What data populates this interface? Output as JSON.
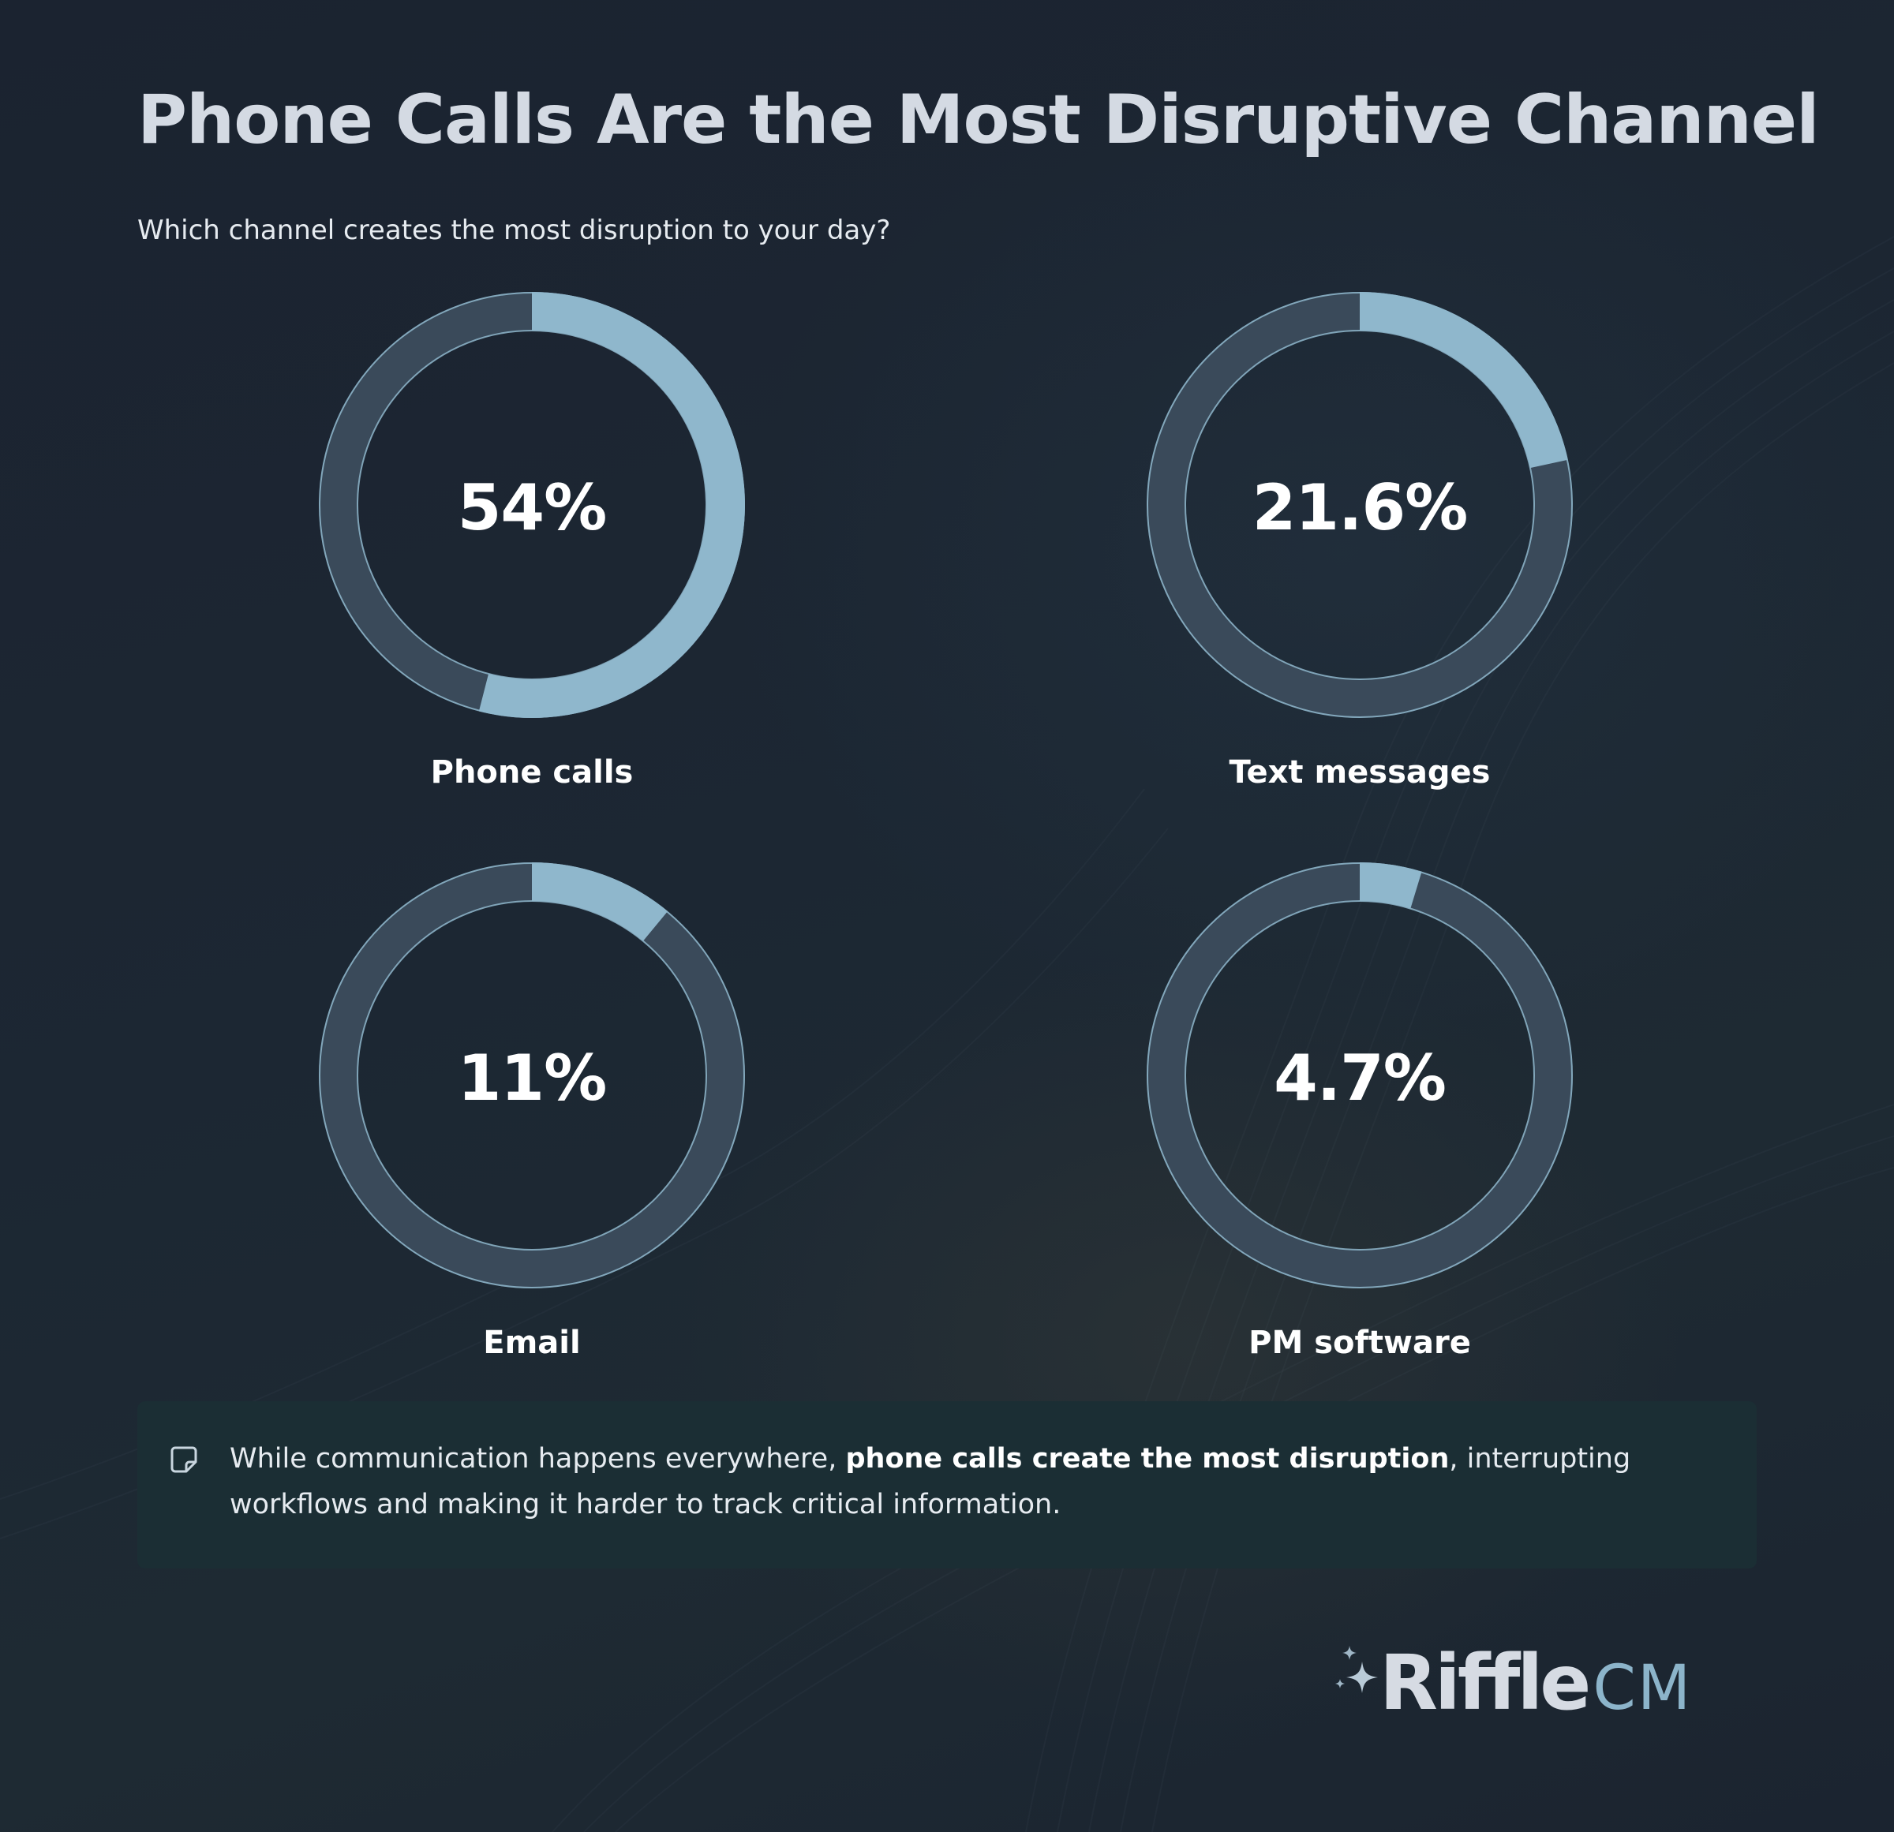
{
  "title": "Phone Calls Are the Most Disruptive Channel",
  "subtitle": "Which channel creates the most disruption to your day?",
  "chart_data": {
    "type": "donut",
    "question": "Which channel creates the most disruption to your day?",
    "series": [
      {
        "name": "Phone calls",
        "value": 54,
        "label": "54%"
      },
      {
        "name": "Text messages",
        "value": 21.6,
        "label": "21.6%"
      },
      {
        "name": "Email",
        "value": 11,
        "label": "11%"
      },
      {
        "name": "PM software",
        "value": 4.7,
        "label": "4.7%"
      }
    ],
    "max": 100
  },
  "callout": {
    "icon": "note-icon",
    "text_before": "While communication happens everywhere, ",
    "text_bold": "phone calls create the most disruption",
    "text_after": ", interrupting workflows and making it harder to track critical information."
  },
  "logo": {
    "brand": "Riffle",
    "suffix": "CM",
    "icon": "sparkle-icon"
  },
  "colors": {
    "background": "#1a2431",
    "track": "#3a4a5a",
    "track_outline": "#8fb7cc",
    "fill": "#8fb7cc",
    "title": "#d4dae3",
    "callout_bg": "#1b2e34",
    "logo_accent": "#8cb4ca"
  }
}
